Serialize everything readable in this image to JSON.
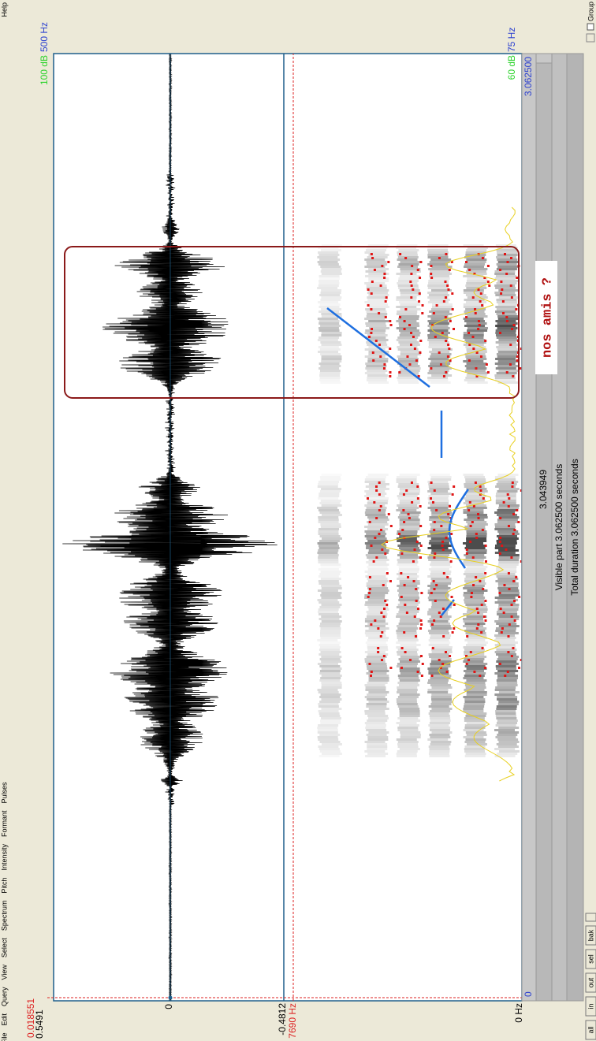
{
  "menu": [
    "File",
    "Edit",
    "Query",
    "View",
    "Select",
    "Spectrum",
    "Pitch",
    "Intensity",
    "Formant",
    "Pulses"
  ],
  "help": "Help",
  "waveform": {
    "cursor_time": "0.018551",
    "top": "0.5491",
    "zero": "0",
    "bottom": "-0.4812"
  },
  "spectrogram": {
    "cursor_freq": "7690 Hz",
    "min_freq": "0 Hz",
    "pitch_max": "500 Hz",
    "pitch_min": "75 Hz",
    "intensity_max": "100 dB",
    "intensity_min": "60 dB"
  },
  "time_bar": {
    "start": "0",
    "end": "3.062500",
    "selection": "3.043949",
    "visible": "Visible part 3.062500 seconds",
    "total": "Total duration 3.062500 seconds"
  },
  "annotation": "nos amis ?",
  "buttons": [
    "all",
    "in",
    "out",
    "sel",
    "bak"
  ],
  "group": "Group"
}
